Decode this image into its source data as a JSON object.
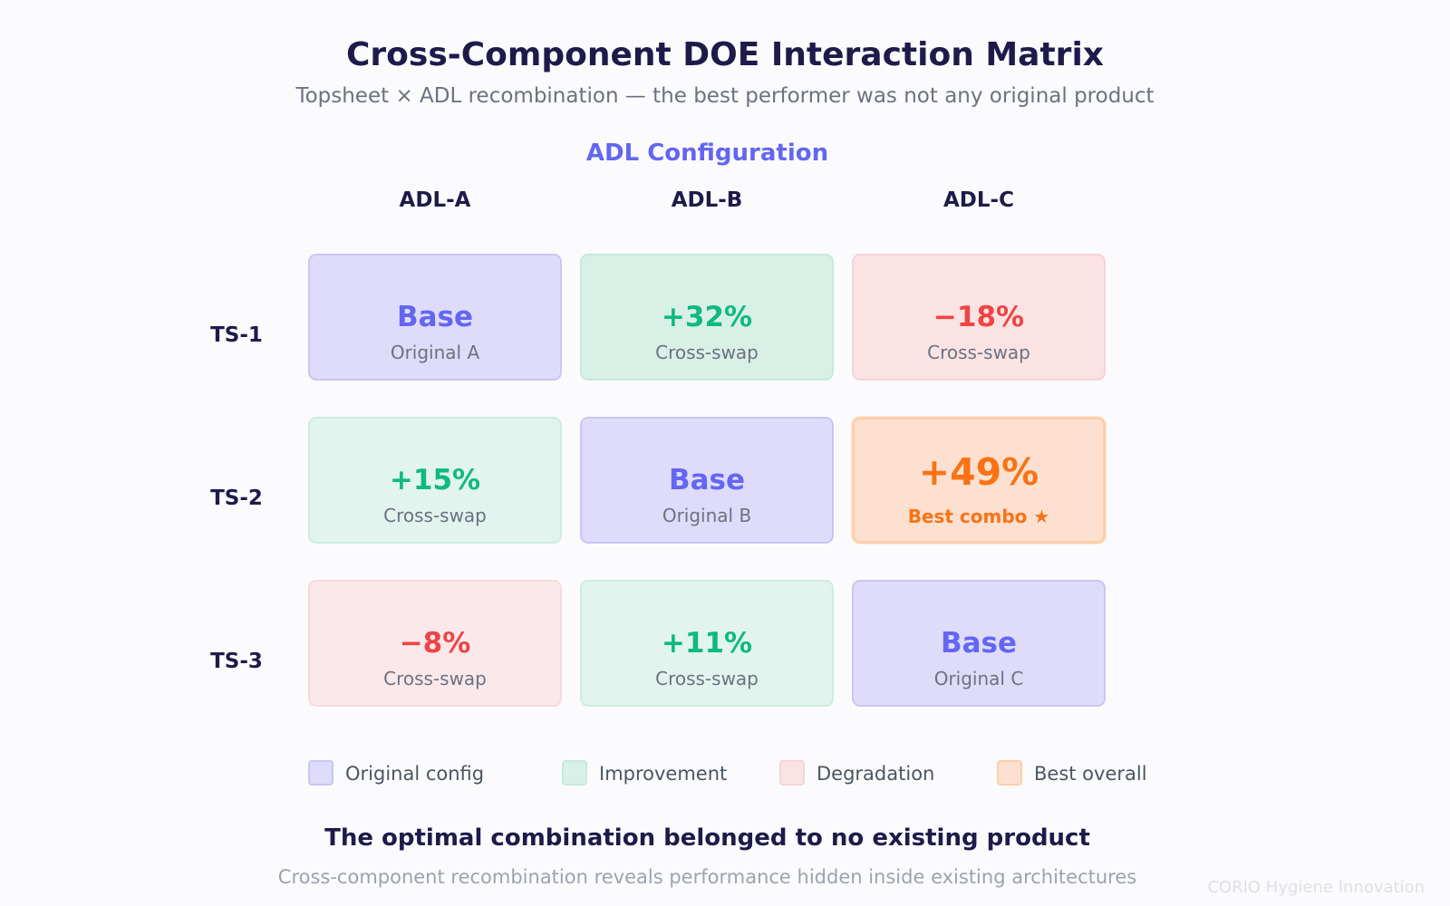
{
  "header": {
    "title": "Cross-Component DOE Interaction Matrix",
    "subtitle": "Topsheet × ADL recombination — the best performer was not any original product"
  },
  "matrix": {
    "column_axis_title": "ADL Configuration",
    "columns": [
      "ADL-A",
      "ADL-B",
      "ADL-C"
    ],
    "rows": [
      {
        "label": "TS-1",
        "cells": [
          {
            "value": "Base",
            "note": "Original A",
            "kind": "base"
          },
          {
            "value": "+32%",
            "note": "Cross-swap",
            "kind": "improve"
          },
          {
            "value": "−18%",
            "note": "Cross-swap",
            "kind": "degrade"
          }
        ]
      },
      {
        "label": "TS-2",
        "cells": [
          {
            "value": "+15%",
            "note": "Cross-swap",
            "kind": "improve-light"
          },
          {
            "value": "Base",
            "note": "Original B",
            "kind": "base"
          },
          {
            "value": "+49%",
            "note": "Best combo ★",
            "kind": "best"
          }
        ]
      },
      {
        "label": "TS-3",
        "cells": [
          {
            "value": "−8%",
            "note": "Cross-swap",
            "kind": "degrade-light"
          },
          {
            "value": "+11%",
            "note": "Cross-swap",
            "kind": "improve-light"
          },
          {
            "value": "Base",
            "note": "Original C",
            "kind": "base"
          }
        ]
      }
    ]
  },
  "legend": {
    "items": [
      {
        "label": "Original config",
        "kind": "base"
      },
      {
        "label": "Improvement",
        "kind": "improve"
      },
      {
        "label": "Degradation",
        "kind": "degrade"
      },
      {
        "label": "Best overall",
        "kind": "best"
      }
    ]
  },
  "conclusion": {
    "headline": "The optimal combination belonged to no existing product",
    "subline": "Cross-component recombination reveals performance hidden inside existing architectures"
  },
  "footer": {
    "watermark": "CORIO Hygiene Innovation"
  },
  "colors": {
    "original": "#6366f1",
    "improvement": "#10b981",
    "degradation": "#ef4444",
    "best": "#f97316",
    "heading": "#1e1b4b"
  }
}
